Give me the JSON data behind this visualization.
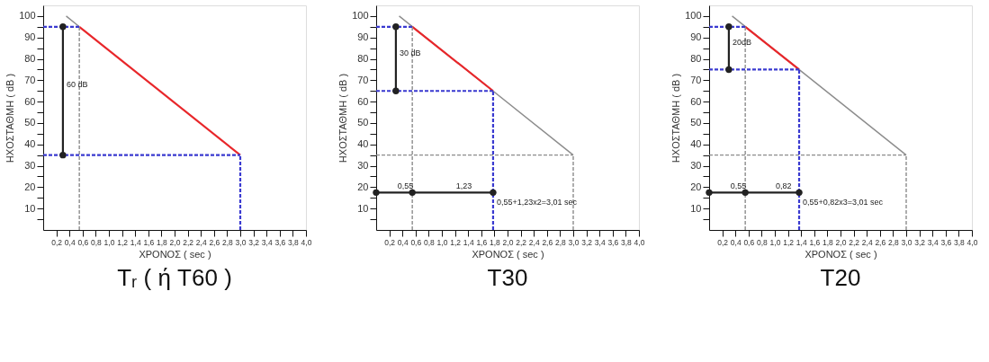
{
  "chart_data": [
    {
      "type": "line",
      "title": "Tᵣ ( ή T60 )",
      "xlabel": "ΧΡΟΝΟΣ ( sec )",
      "ylabel": "ΗΧΟΣΤΑΘΜΗ ( dB )",
      "xlim": [
        0,
        4.0
      ],
      "ylim": [
        0,
        105
      ],
      "xticks": [
        {
          "value": 0.2,
          "label": "0,2"
        },
        {
          "value": 0.4,
          "label": "0,4"
        },
        {
          "value": 0.6,
          "label": "0,6"
        },
        {
          "value": 0.8,
          "label": "0,8"
        },
        {
          "value": 1.0,
          "label": "1,0"
        },
        {
          "value": 1.2,
          "label": "1,2"
        },
        {
          "value": 1.4,
          "label": "1,4"
        },
        {
          "value": 1.6,
          "label": "1,6"
        },
        {
          "value": 1.8,
          "label": "1,8"
        },
        {
          "value": 2.0,
          "label": "2,0"
        },
        {
          "value": 2.2,
          "label": "2,2"
        },
        {
          "value": 2.4,
          "label": "2,4"
        },
        {
          "value": 2.6,
          "label": "2,6"
        },
        {
          "value": 2.8,
          "label": "2,8"
        },
        {
          "value": 3.0,
          "label": "3,0"
        },
        {
          "value": 3.2,
          "label": "3,2"
        },
        {
          "value": 3.4,
          "label": "3,4"
        },
        {
          "value": 3.6,
          "label": "3,6"
        },
        {
          "value": 3.8,
          "label": "3,8"
        },
        {
          "value": 4.0,
          "label": "4,0"
        }
      ],
      "yticks": [
        {
          "value": 5,
          "label": null
        },
        10,
        {
          "value": 15,
          "label": null
        },
        20,
        {
          "value": 25,
          "label": null
        },
        30,
        {
          "value": 35,
          "label": null
        },
        40,
        {
          "value": 45,
          "label": null
        },
        50,
        {
          "value": 55,
          "label": null
        },
        60,
        {
          "value": 65,
          "label": null
        },
        70,
        {
          "value": 75,
          "label": null
        },
        80,
        {
          "value": 85,
          "label": null
        },
        90,
        {
          "value": 95,
          "label": null
        },
        100
      ],
      "grid": false,
      "series": [
        {
          "color": "#8c8c8c",
          "line_style": "solid",
          "x": [
            0.35,
            0.55
          ],
          "values": [
            100,
            95
          ]
        },
        {
          "color": "#e8262a",
          "line_style": "solid",
          "x": [
            0.55,
            3.0
          ],
          "values": [
            95,
            35
          ]
        },
        {
          "color": "#8c8c8c",
          "line_style": "dashed",
          "x": [
            0.55,
            0.55
          ],
          "values": [
            0,
            95
          ]
        },
        {
          "color": "#3a3ad0",
          "line_style": "dashed",
          "x": [
            0,
            0.55
          ],
          "values": [
            95,
            95
          ]
        },
        {
          "color": "#3a3ad0",
          "line_style": "dashed",
          "x": [
            0,
            3.0
          ],
          "values": [
            35,
            35
          ]
        },
        {
          "color": "#3a3ad0",
          "line_style": "dashed",
          "x": [
            3.0,
            3.0
          ],
          "values": [
            0,
            35
          ]
        },
        {
          "color": "#222222",
          "line_style": "solid",
          "marker": "circle",
          "x": [
            0.3,
            0.3
          ],
          "values": [
            35,
            95
          ]
        }
      ],
      "annotations": [
        {
          "text": "60 dB",
          "x": 0.3,
          "y": 65
        }
      ]
    },
    {
      "type": "line",
      "title": "T30",
      "xlabel": "ΧΡΟΝΟΣ ( sec )",
      "ylabel": "ΗΧΟΣΤΑΘΜΗ ( dB )",
      "xlim": [
        0,
        4.0
      ],
      "ylim": [
        0,
        105
      ],
      "xticks": [
        {
          "value": 0.2,
          "label": "0,2"
        },
        {
          "value": 0.4,
          "label": "0,4"
        },
        {
          "value": 0.6,
          "label": "0,6"
        },
        {
          "value": 0.8,
          "label": "0,8"
        },
        {
          "value": 1.0,
          "label": "1,0"
        },
        {
          "value": 1.2,
          "label": "1,2"
        },
        {
          "value": 1.4,
          "label": "1,4"
        },
        {
          "value": 1.6,
          "label": "1,6"
        },
        {
          "value": 1.8,
          "label": "1,8"
        },
        {
          "value": 2.0,
          "label": "2,0"
        },
        {
          "value": 2.2,
          "label": "2,2"
        },
        {
          "value": 2.4,
          "label": "2,4"
        },
        {
          "value": 2.6,
          "label": "2,6"
        },
        {
          "value": 2.8,
          "label": "2,8"
        },
        {
          "value": 3.0,
          "label": "3,0"
        },
        {
          "value": 3.2,
          "label": "3,2"
        },
        {
          "value": 3.4,
          "label": "3,4"
        },
        {
          "value": 3.6,
          "label": "3,6"
        },
        {
          "value": 3.8,
          "label": "3,8"
        },
        {
          "value": 4.0,
          "label": "4,0"
        }
      ],
      "yticks": [
        {
          "value": 5,
          "label": null
        },
        10,
        {
          "value": 15,
          "label": null
        },
        20,
        {
          "value": 25,
          "label": null
        },
        30,
        {
          "value": 35,
          "label": null
        },
        40,
        {
          "value": 45,
          "label": null
        },
        50,
        {
          "value": 55,
          "label": null
        },
        60,
        {
          "value": 65,
          "label": null
        },
        70,
        {
          "value": 75,
          "label": null
        },
        80,
        {
          "value": 85,
          "label": null
        },
        90,
        {
          "value": 95,
          "label": null
        },
        100
      ],
      "grid": false,
      "series": [
        {
          "color": "#8c8c8c",
          "line_style": "solid",
          "x": [
            0.35,
            3.0
          ],
          "values": [
            100,
            35
          ]
        },
        {
          "color": "#e8262a",
          "line_style": "solid",
          "x": [
            0.55,
            1.78
          ],
          "values": [
            95,
            65
          ]
        },
        {
          "color": "#8c8c8c",
          "line_style": "dashed",
          "x": [
            0.55,
            0.55
          ],
          "values": [
            0,
            95
          ]
        },
        {
          "color": "#8c8c8c",
          "line_style": "dashed",
          "x": [
            0,
            3.0
          ],
          "values": [
            35,
            35
          ]
        },
        {
          "color": "#8c8c8c",
          "line_style": "dashed",
          "x": [
            3.0,
            3.0
          ],
          "values": [
            0,
            35
          ]
        },
        {
          "color": "#3a3ad0",
          "line_style": "dashed",
          "x": [
            0,
            0.55
          ],
          "values": [
            95,
            95
          ]
        },
        {
          "color": "#3a3ad0",
          "line_style": "dashed",
          "x": [
            0,
            1.78
          ],
          "values": [
            65,
            65
          ]
        },
        {
          "color": "#3a3ad0",
          "line_style": "dashed",
          "x": [
            1.78,
            1.78
          ],
          "values": [
            0,
            65
          ]
        },
        {
          "color": "#222222",
          "line_style": "solid",
          "marker": "circle",
          "x": [
            0.3,
            0.3
          ],
          "values": [
            65,
            95
          ]
        },
        {
          "color": "#222222",
          "line_style": "solid",
          "marker": "circle",
          "x": [
            0,
            0.55,
            1.78
          ],
          "values": [
            17.5,
            17.5,
            17.5
          ]
        }
      ],
      "annotations": [
        {
          "text": "30 dB",
          "x": 0.3,
          "y": 80
        },
        {
          "text": "0,55",
          "x": 0.27,
          "y": 17.5
        },
        {
          "text": "1,23",
          "x": 1.16,
          "y": 17.5
        },
        {
          "text": "0,55+1,23x2=3,01 sec",
          "x": 1.78,
          "y": 10
        }
      ]
    },
    {
      "type": "line",
      "title": "T20",
      "xlabel": "ΧΡΟΝΟΣ ( sec )",
      "ylabel": "ΗΧΟΣΤΑΘΜΗ ( dB )",
      "xlim": [
        0,
        4.0
      ],
      "ylim": [
        0,
        105
      ],
      "xticks": [
        {
          "value": 0.2,
          "label": "0,2"
        },
        {
          "value": 0.4,
          "label": "0,4"
        },
        {
          "value": 0.6,
          "label": "0,6"
        },
        {
          "value": 0.8,
          "label": "0,8"
        },
        {
          "value": 1.0,
          "label": "1,0"
        },
        {
          "value": 1.2,
          "label": "1,2"
        },
        {
          "value": 1.4,
          "label": "1,4"
        },
        {
          "value": 1.6,
          "label": "1,6"
        },
        {
          "value": 1.8,
          "label": "1,8"
        },
        {
          "value": 2.0,
          "label": "2,0"
        },
        {
          "value": 2.2,
          "label": "2,2"
        },
        {
          "value": 2.4,
          "label": "2,4"
        },
        {
          "value": 2.6,
          "label": "2,6"
        },
        {
          "value": 2.8,
          "label": "2,8"
        },
        {
          "value": 3.0,
          "label": "3,0"
        },
        {
          "value": 3.2,
          "label": "3,2"
        },
        {
          "value": 3.4,
          "label": "3,4"
        },
        {
          "value": 3.6,
          "label": "3,6"
        },
        {
          "value": 3.8,
          "label": "3,8"
        },
        {
          "value": 4.0,
          "label": "4,0"
        }
      ],
      "yticks": [
        {
          "value": 5,
          "label": null
        },
        10,
        {
          "value": 15,
          "label": null
        },
        20,
        {
          "value": 25,
          "label": null
        },
        30,
        {
          "value": 35,
          "label": null
        },
        40,
        {
          "value": 45,
          "label": null
        },
        50,
        {
          "value": 55,
          "label": null
        },
        60,
        {
          "value": 65,
          "label": null
        },
        70,
        {
          "value": 75,
          "label": null
        },
        80,
        {
          "value": 85,
          "label": null
        },
        90,
        {
          "value": 95,
          "label": null
        },
        100
      ],
      "grid": false,
      "series": [
        {
          "color": "#8c8c8c",
          "line_style": "solid",
          "x": [
            0.35,
            3.0
          ],
          "values": [
            100,
            35
          ]
        },
        {
          "color": "#e8262a",
          "line_style": "solid",
          "x": [
            0.55,
            1.37
          ],
          "values": [
            95,
            75
          ]
        },
        {
          "color": "#8c8c8c",
          "line_style": "dashed",
          "x": [
            0.55,
            0.55
          ],
          "values": [
            0,
            95
          ]
        },
        {
          "color": "#8c8c8c",
          "line_style": "dashed",
          "x": [
            0,
            3.0
          ],
          "values": [
            35,
            35
          ]
        },
        {
          "color": "#8c8c8c",
          "line_style": "dashed",
          "x": [
            3.0,
            3.0
          ],
          "values": [
            0,
            35
          ]
        },
        {
          "color": "#3a3ad0",
          "line_style": "dashed",
          "x": [
            0,
            0.55
          ],
          "values": [
            95,
            95
          ]
        },
        {
          "color": "#3a3ad0",
          "line_style": "dashed",
          "x": [
            0,
            1.37
          ],
          "values": [
            75,
            75
          ]
        },
        {
          "color": "#3a3ad0",
          "line_style": "dashed",
          "x": [
            1.37,
            1.37
          ],
          "values": [
            0,
            75
          ]
        },
        {
          "color": "#222222",
          "line_style": "solid",
          "marker": "circle",
          "x": [
            0.3,
            0.3
          ],
          "values": [
            75,
            95
          ]
        },
        {
          "color": "#222222",
          "line_style": "solid",
          "marker": "circle",
          "x": [
            0,
            0.55,
            1.37
          ],
          "values": [
            17.5,
            17.5,
            17.5
          ]
        }
      ],
      "annotations": [
        {
          "text": "20dB",
          "x": 0.3,
          "y": 85
        },
        {
          "text": "0,55",
          "x": 0.27,
          "y": 17.5
        },
        {
          "text": "0,82",
          "x": 0.96,
          "y": 17.5
        },
        {
          "text": "0,55+0,82x3=3,01 sec",
          "x": 1.37,
          "y": 10
        }
      ]
    }
  ]
}
